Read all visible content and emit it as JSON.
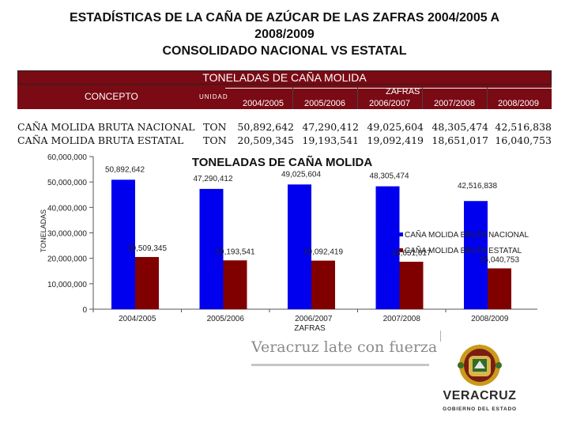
{
  "title": {
    "line1": "ESTADÍSTICAS DE LA CAÑA DE AZÚCAR  DE LAS ZAFRAS 2004/2005 A",
    "line2": "2008/2009",
    "line3": "CONSOLIDADO NACIONAL VS ESTATAL"
  },
  "table": {
    "banner": "TONELADAS DE CAÑA MOLIDA",
    "concepto_header": "CONCEPTO",
    "unidad_header": "UNIDAD",
    "zafras_header": "ZAFRAS",
    "years": [
      "2004/2005",
      "2005/2006",
      "2006/2007",
      "2007/2008",
      "2008/2009"
    ],
    "rows": [
      {
        "concepto": "CAÑA MOLIDA BRUTA NACIONAL",
        "unidad": "TON",
        "values": [
          "50,892,642",
          "47,290,412",
          "49,025,604",
          "48,305,474",
          "42,516,838"
        ]
      },
      {
        "concepto": "CAÑA MOLIDA BRUTA ESTATAL",
        "unidad": "TON",
        "values": [
          "20,509,345",
          "19,193,541",
          "19,092,419",
          "18,651,017",
          "16,040,753"
        ]
      }
    ]
  },
  "chart_data": {
    "type": "bar",
    "title": "TONELADAS DE CAÑA MOLIDA",
    "xlabel": "ZAFRAS",
    "ylabel": "TONELADAS",
    "categories": [
      "2004/2005",
      "2005/2006",
      "2006/2007",
      "2007/2008",
      "2008/2009"
    ],
    "series": [
      {
        "name": "CAÑA MOLIDA BRUTA NACIONAL",
        "color": "#0000ee",
        "values": [
          50892642,
          47290412,
          49025604,
          48305474,
          42516838
        ],
        "labels": [
          "50,892,642",
          "47,290,412",
          "49,025,604",
          "48,305,474",
          "42,516,838"
        ]
      },
      {
        "name": "CAÑA MOLIDA BRUTA ESTATAL",
        "color": "#800000",
        "values": [
          20509345,
          19193541,
          19092419,
          18651017,
          16040753
        ],
        "labels": [
          "20,509,345",
          "19,193,541",
          "19,092,419",
          "18,651,017",
          "16,040,753"
        ]
      }
    ],
    "ylim": [
      0,
      60000000
    ],
    "yticks": [
      "0",
      "10,000,000",
      "20,000,000",
      "30,000,000",
      "40,000,000",
      "50,000,000",
      "60,000,000"
    ],
    "ytick_values": [
      0,
      10000000,
      20000000,
      30000000,
      40000000,
      50000000,
      60000000
    ],
    "grid": false,
    "legend_position": "right"
  },
  "footer": {
    "slogan": "Veracruz late con fuerza",
    "logo_name": "VERACRUZ",
    "logo_sub": "GOBIERNO DEL ESTADO"
  },
  "colors": {
    "header_bg": "#7a0a14",
    "nacional": "#0000ee",
    "estatal": "#800000",
    "accent_gold": "#d9a400"
  }
}
